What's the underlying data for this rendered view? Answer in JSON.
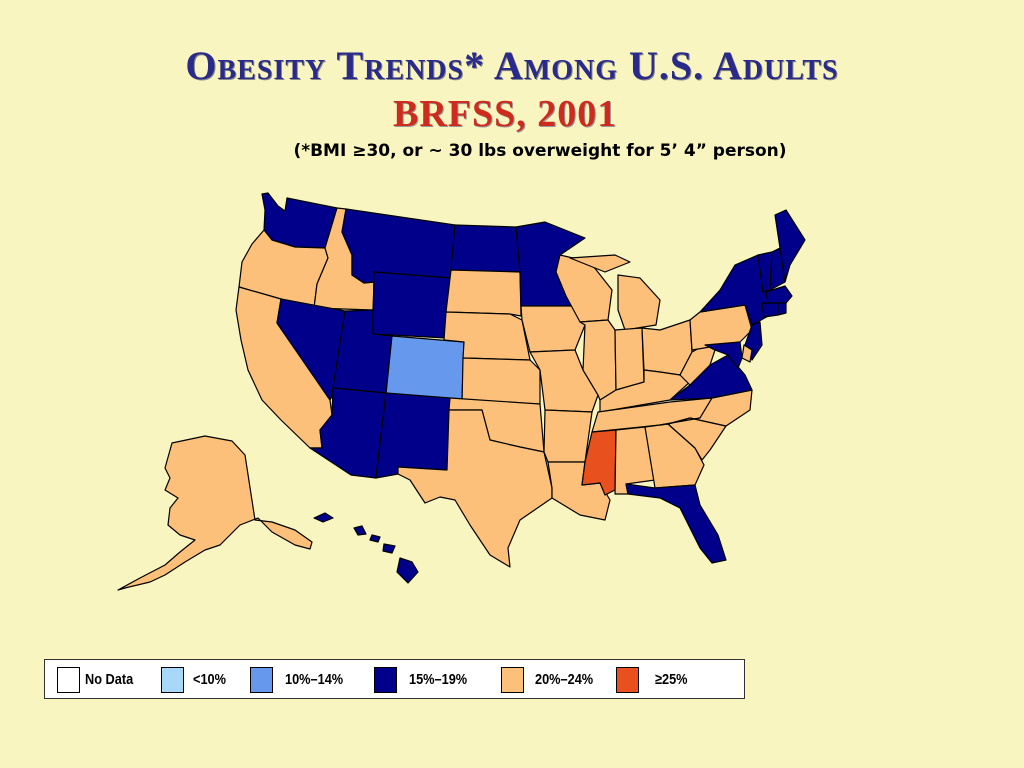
{
  "title": "Obesity Trends* Among U.S. Adults",
  "subtitle": "BRFSS, 2001",
  "note": "(*BMI ≥30, or ~ 30 lbs overweight for 5’ 4” person)",
  "colors": {
    "background": "#f8f5c0",
    "no_data": "#ffffff",
    "lt10": "#a8d8f8",
    "10_14": "#6699ee",
    "15_19": "#00008b",
    "20_24": "#fcc07a",
    "ge25": "#e8501d"
  },
  "legend": [
    {
      "key": "no_data",
      "label": "No Data"
    },
    {
      "key": "lt10",
      "label": "<10%"
    },
    {
      "key": "10_14",
      "label": "10%–14%"
    },
    {
      "key": "15_19",
      "label": "15%–19%"
    },
    {
      "key": "20_24",
      "label": "20%–24%"
    },
    {
      "key": "ge25",
      "label": "≥25%"
    }
  ],
  "states": {
    "WA": "15_19",
    "OR": "20_24",
    "CA": "20_24",
    "ID": "20_24",
    "NV": "15_19",
    "MT": "15_19",
    "WY": "15_19",
    "UT": "15_19",
    "AZ": "15_19",
    "CO": "10_14",
    "NM": "15_19",
    "ND": "15_19",
    "SD": "20_24",
    "NE": "20_24",
    "KS": "20_24",
    "OK": "20_24",
    "TX": "20_24",
    "MN": "15_19",
    "IA": "20_24",
    "MO": "20_24",
    "AR": "20_24",
    "LA": "20_24",
    "WI": "20_24",
    "MI": "20_24",
    "IL": "20_24",
    "IN": "20_24",
    "OH": "20_24",
    "KY": "20_24",
    "TN": "20_24",
    "MS": "ge25",
    "AL": "20_24",
    "GA": "20_24",
    "FL": "15_19",
    "SC": "20_24",
    "NC": "20_24",
    "VA": "15_19",
    "WV": "20_24",
    "PA": "20_24",
    "NY": "15_19",
    "NJ": "15_19",
    "DE": "20_24",
    "MD": "15_19",
    "VT": "15_19",
    "NH": "15_19",
    "ME": "15_19",
    "MA": "15_19",
    "CT": "15_19",
    "RI": "15_19",
    "AK": "20_24",
    "HI": "15_19"
  }
}
